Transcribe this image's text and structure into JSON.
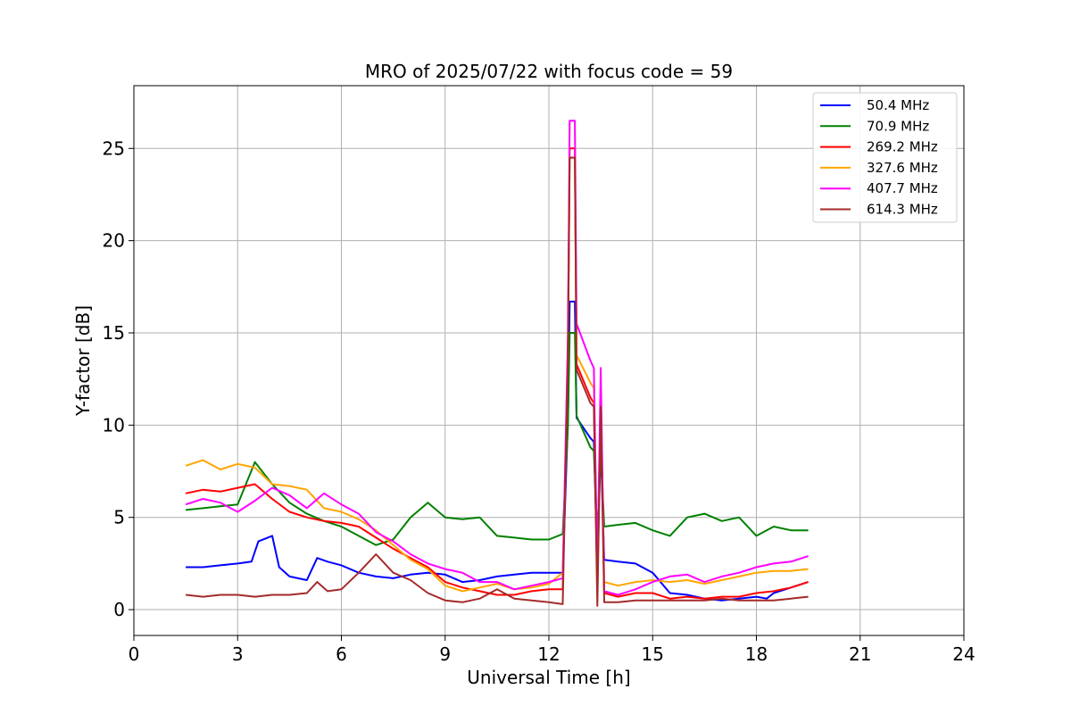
{
  "chart_data": {
    "type": "line",
    "title": "MRO of 2025/07/22 with focus code = 59",
    "xlabel": "Universal Time [h]",
    "ylabel": "Y-factor [dB]",
    "xlim": [
      0,
      24
    ],
    "ylim": [
      -1.4,
      28.4
    ],
    "xticks": [
      0,
      3,
      6,
      9,
      12,
      15,
      18,
      21,
      24
    ],
    "yticks": [
      0,
      5,
      10,
      15,
      20,
      25
    ],
    "grid": true,
    "legend_position": "top-right",
    "series": [
      {
        "name": " 50.4 MHz",
        "color": "#0000ff",
        "x": [
          1.5,
          2.0,
          2.5,
          3.0,
          3.4,
          3.6,
          4.0,
          4.2,
          4.5,
          5.0,
          5.3,
          5.6,
          6.0,
          6.5,
          7.0,
          7.5,
          8.0,
          8.5,
          9.0,
          9.5,
          10.0,
          10.5,
          11.0,
          11.5,
          12.0,
          12.4,
          12.55,
          12.6,
          12.75,
          12.8,
          13.2,
          13.3,
          13.4,
          13.5,
          13.6,
          14.0,
          14.5,
          15.0,
          15.5,
          16.0,
          16.5,
          17.0,
          17.5,
          18.0,
          18.3,
          18.5,
          19.0,
          19.5
        ],
        "y": [
          2.3,
          2.3,
          2.4,
          2.5,
          2.6,
          3.7,
          4.0,
          2.3,
          1.8,
          1.6,
          2.8,
          2.6,
          2.4,
          2.0,
          1.8,
          1.7,
          1.9,
          2.0,
          1.9,
          1.5,
          1.6,
          1.8,
          1.9,
          2.0,
          2.0,
          2.0,
          10.2,
          16.7,
          16.7,
          10.4,
          9.3,
          9.1,
          2.3,
          9.0,
          2.7,
          2.6,
          2.5,
          2.0,
          0.9,
          0.8,
          0.6,
          0.5,
          0.6,
          0.7,
          0.6,
          0.9,
          1.2,
          1.5
        ]
      },
      {
        "name": " 70.9 MHz",
        "color": "#008000",
        "x": [
          1.5,
          2.0,
          2.5,
          3.0,
          3.5,
          4.0,
          4.5,
          5.0,
          5.5,
          6.0,
          6.5,
          7.0,
          7.5,
          8.0,
          8.5,
          9.0,
          9.5,
          10.0,
          10.5,
          11.0,
          11.5,
          12.0,
          12.4,
          12.55,
          12.6,
          12.75,
          12.8,
          13.2,
          13.3,
          13.4,
          13.5,
          13.6,
          14.0,
          14.5,
          15.0,
          15.5,
          16.0,
          16.5,
          17.0,
          17.5,
          18.0,
          18.5,
          19.0,
          19.5
        ],
        "y": [
          5.4,
          5.5,
          5.6,
          5.7,
          8.0,
          6.8,
          5.8,
          5.2,
          4.8,
          4.5,
          4.0,
          3.5,
          3.8,
          5.0,
          5.8,
          5.0,
          4.9,
          5.0,
          4.0,
          3.9,
          3.8,
          3.8,
          4.1,
          9.9,
          15.0,
          15.0,
          10.5,
          8.8,
          8.6,
          4.0,
          8.6,
          4.5,
          4.6,
          4.7,
          4.3,
          4.0,
          5.0,
          5.2,
          4.8,
          5.0,
          4.0,
          4.5,
          4.3,
          4.3
        ]
      },
      {
        "name": "269.2 MHz",
        "color": "#ff0000",
        "x": [
          1.5,
          2.0,
          2.5,
          3.0,
          3.5,
          4.0,
          4.5,
          5.0,
          5.5,
          6.0,
          6.5,
          7.0,
          7.5,
          8.0,
          8.5,
          9.0,
          9.5,
          10.0,
          10.5,
          11.0,
          11.5,
          12.0,
          12.4,
          12.55,
          12.6,
          12.75,
          12.8,
          13.2,
          13.3,
          13.4,
          13.5,
          13.6,
          14.0,
          14.5,
          15.0,
          15.5,
          16.0,
          16.5,
          17.0,
          17.5,
          18.0,
          18.5,
          19.0,
          19.5
        ],
        "y": [
          6.3,
          6.5,
          6.4,
          6.6,
          6.8,
          6.0,
          5.3,
          5.0,
          4.8,
          4.7,
          4.5,
          3.9,
          3.3,
          2.8,
          2.3,
          1.5,
          1.2,
          1.0,
          0.8,
          0.8,
          1.0,
          1.1,
          1.1,
          13.8,
          25.0,
          25.0,
          13.3,
          11.5,
          11.2,
          1.0,
          11.2,
          0.9,
          0.7,
          0.9,
          0.9,
          0.6,
          0.7,
          0.6,
          0.7,
          0.7,
          0.9,
          1.0,
          1.2,
          1.5
        ]
      },
      {
        "name": "327.6 MHz",
        "color": "#ffa500",
        "x": [
          1.5,
          2.0,
          2.5,
          3.0,
          3.5,
          4.0,
          4.5,
          5.0,
          5.5,
          6.0,
          6.5,
          7.0,
          7.5,
          8.0,
          8.5,
          9.0,
          9.5,
          10.0,
          10.5,
          11.0,
          11.5,
          12.0,
          12.4,
          12.55,
          12.6,
          12.75,
          12.8,
          13.2,
          13.3,
          13.4,
          13.5,
          13.6,
          14.0,
          14.5,
          15.0,
          15.5,
          16.0,
          16.5,
          17.0,
          17.5,
          18.0,
          18.5,
          19.0,
          19.5
        ],
        "y": [
          7.8,
          8.1,
          7.6,
          7.9,
          7.7,
          6.8,
          6.7,
          6.5,
          5.5,
          5.3,
          4.9,
          4.3,
          3.5,
          2.7,
          2.2,
          1.3,
          1.0,
          1.2,
          1.4,
          1.1,
          1.2,
          1.4,
          2.0,
          14.2,
          24.5,
          24.5,
          13.8,
          12.3,
          12.0,
          1.8,
          12.0,
          1.5,
          1.3,
          1.5,
          1.6,
          1.5,
          1.6,
          1.4,
          1.6,
          1.8,
          2.0,
          2.1,
          2.1,
          2.2
        ]
      },
      {
        "name": "407.7 MHz",
        "color": "#ff00ff",
        "x": [
          1.5,
          2.0,
          2.5,
          3.0,
          3.5,
          4.0,
          4.5,
          5.0,
          5.5,
          6.0,
          6.5,
          7.0,
          7.5,
          8.0,
          8.5,
          9.0,
          9.5,
          10.0,
          10.5,
          11.0,
          11.5,
          12.0,
          12.4,
          12.55,
          12.6,
          12.75,
          12.8,
          13.2,
          13.3,
          13.4,
          13.5,
          13.6,
          14.0,
          14.5,
          15.0,
          15.5,
          16.0,
          16.5,
          17.0,
          17.5,
          18.0,
          18.5,
          19.0,
          19.5
        ],
        "y": [
          5.7,
          6.0,
          5.8,
          5.3,
          5.9,
          6.6,
          6.2,
          5.5,
          6.3,
          5.7,
          5.2,
          4.2,
          3.7,
          3.0,
          2.5,
          2.2,
          2.0,
          1.5,
          1.5,
          1.1,
          1.3,
          1.5,
          1.7,
          14.8,
          26.5,
          26.5,
          15.5,
          13.5,
          13.1,
          1.8,
          13.1,
          1.0,
          0.8,
          1.1,
          1.5,
          1.8,
          1.9,
          1.5,
          1.8,
          2.0,
          2.3,
          2.5,
          2.6,
          2.9
        ]
      },
      {
        "name": "614.3 MHz",
        "color": "#a52a2a",
        "x": [
          1.5,
          2.0,
          2.5,
          3.0,
          3.5,
          4.0,
          4.5,
          5.0,
          5.3,
          5.6,
          6.0,
          6.5,
          7.0,
          7.5,
          8.0,
          8.5,
          9.0,
          9.5,
          10.0,
          10.5,
          11.0,
          11.5,
          12.0,
          12.4,
          12.55,
          12.6,
          12.75,
          12.8,
          13.2,
          13.3,
          13.4,
          13.5,
          13.6,
          14.0,
          14.5,
          15.0,
          15.5,
          16.0,
          16.5,
          17.0,
          17.5,
          18.0,
          18.5,
          19.0,
          19.5
        ],
        "y": [
          0.8,
          0.7,
          0.8,
          0.8,
          0.7,
          0.8,
          0.8,
          0.9,
          1.5,
          1.0,
          1.1,
          2.0,
          3.0,
          2.0,
          1.6,
          0.9,
          0.5,
          0.4,
          0.6,
          1.1,
          0.6,
          0.5,
          0.4,
          0.3,
          13.5,
          24.5,
          24.5,
          13.0,
          11.2,
          11.0,
          0.2,
          11.0,
          0.4,
          0.4,
          0.5,
          0.5,
          0.5,
          0.5,
          0.5,
          0.6,
          0.5,
          0.5,
          0.5,
          0.6,
          0.7
        ]
      }
    ]
  }
}
